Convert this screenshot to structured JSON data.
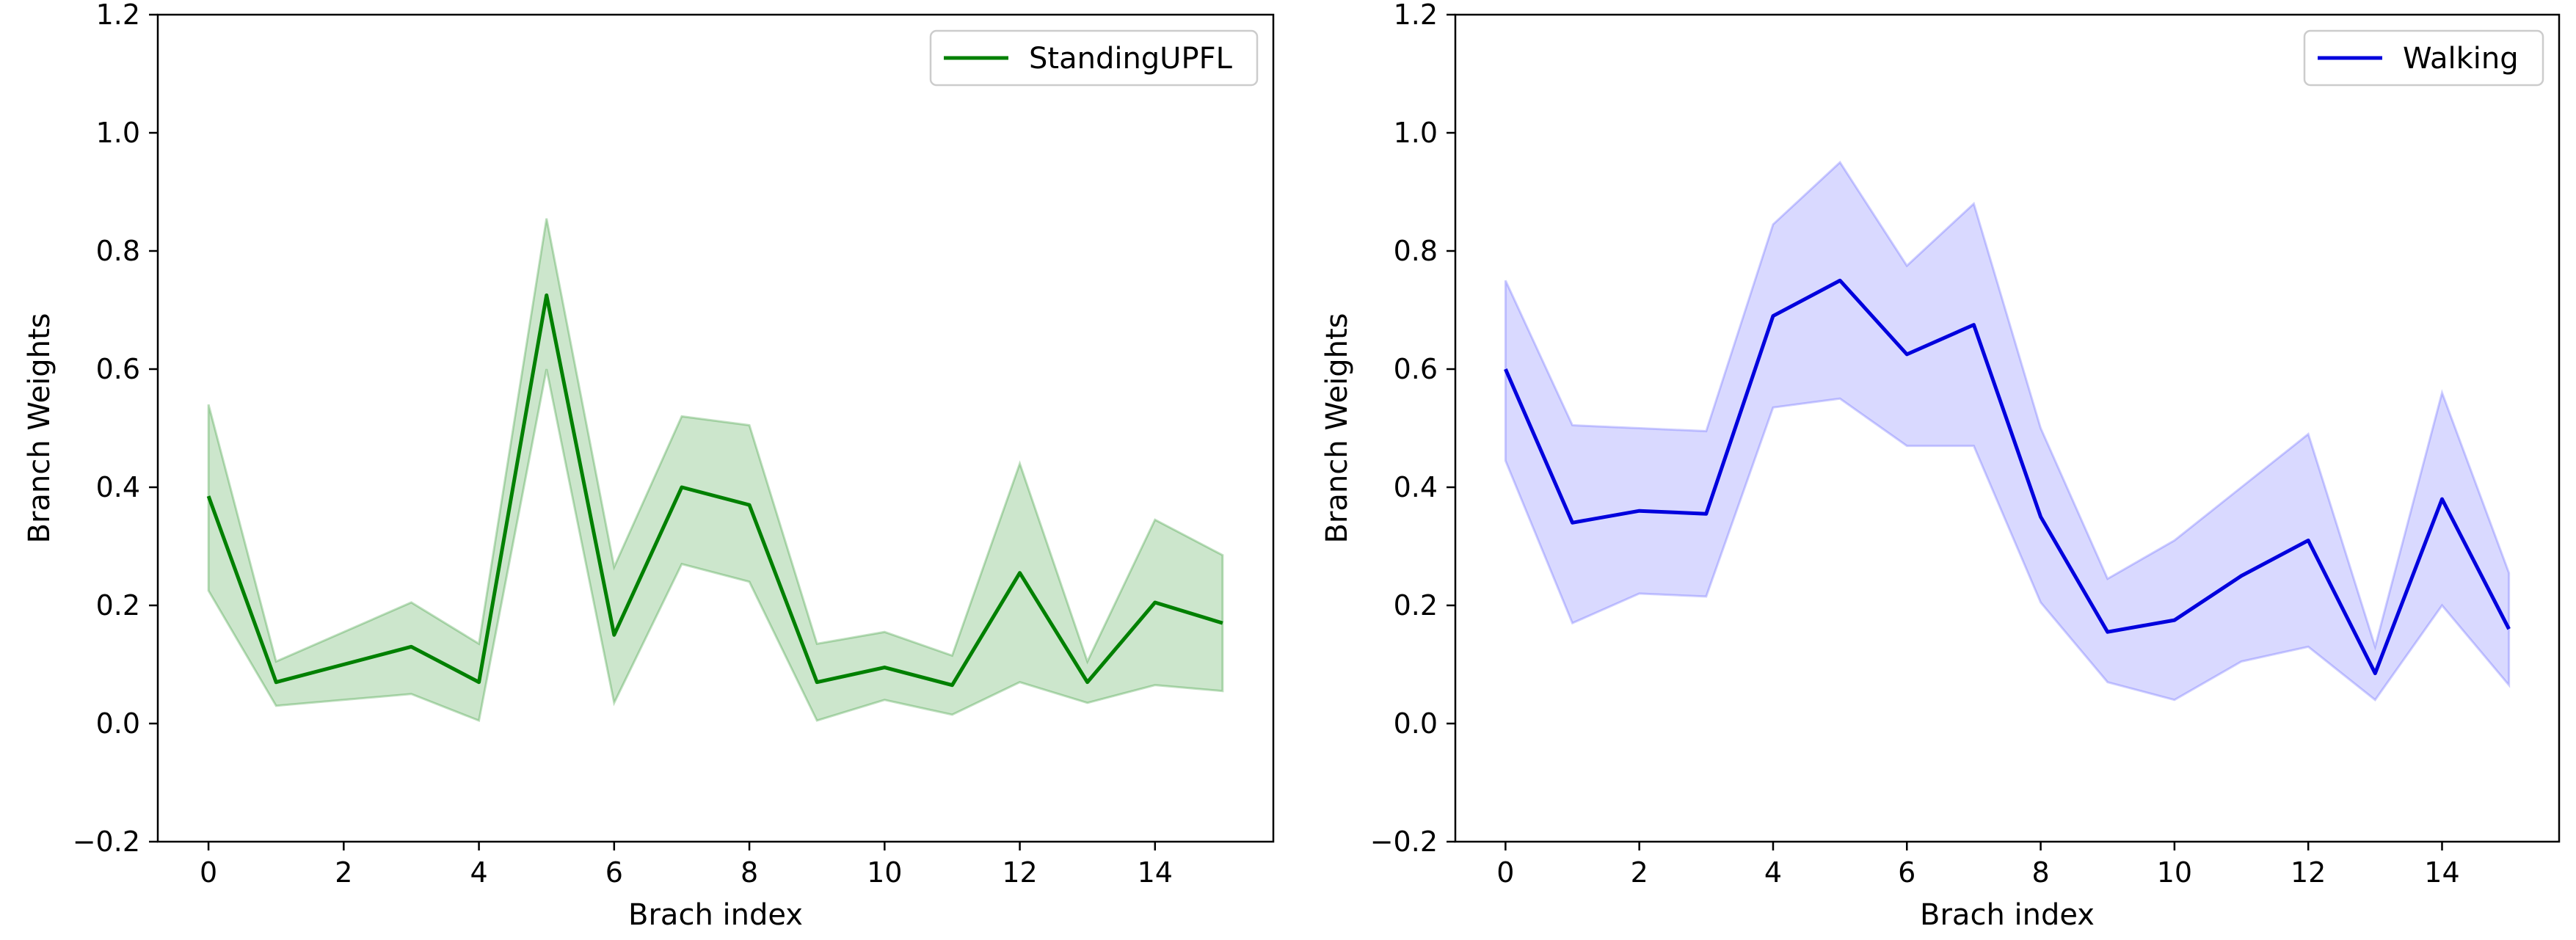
{
  "chart_data": [
    {
      "type": "line",
      "xlabel": "Brach index",
      "ylabel": "Branch Weights",
      "xlim": [
        -0.75,
        15.75
      ],
      "ylim": [
        -0.2,
        1.2
      ],
      "xticks": [
        0,
        2,
        4,
        6,
        8,
        10,
        12,
        14
      ],
      "yticks": [
        -0.2,
        0.0,
        0.2,
        0.4,
        0.6,
        0.8,
        1.0,
        1.2
      ],
      "ytick_labels": [
        "−0.2",
        "0.0",
        "0.2",
        "0.4",
        "0.6",
        "0.8",
        "1.0",
        "1.2"
      ],
      "legend_position": "top-right",
      "grid": false,
      "series": [
        {
          "name": "StandingUPFL",
          "color": "#008000",
          "fill_color": "#008000",
          "x": [
            0,
            1,
            2,
            3,
            4,
            5,
            6,
            7,
            8,
            9,
            10,
            11,
            12,
            13,
            14,
            15
          ],
          "values": [
            0.385,
            0.07,
            0.1,
            0.13,
            0.07,
            0.725,
            0.15,
            0.4,
            0.37,
            0.07,
            0.095,
            0.065,
            0.255,
            0.07,
            0.205,
            0.17
          ],
          "lower": [
            0.225,
            0.03,
            0.04,
            0.05,
            0.005,
            0.6,
            0.035,
            0.27,
            0.24,
            0.005,
            0.04,
            0.015,
            0.07,
            0.035,
            0.065,
            0.055
          ],
          "upper": [
            0.54,
            0.105,
            0.155,
            0.205,
            0.135,
            0.855,
            0.265,
            0.52,
            0.505,
            0.135,
            0.155,
            0.115,
            0.44,
            0.105,
            0.345,
            0.285
          ]
        }
      ]
    },
    {
      "type": "line",
      "xlabel": "Brach index",
      "ylabel": "Branch Weights",
      "xlim": [
        -0.75,
        15.75
      ],
      "ylim": [
        -0.2,
        1.2
      ],
      "xticks": [
        0,
        2,
        4,
        6,
        8,
        10,
        12,
        14
      ],
      "yticks": [
        -0.2,
        0.0,
        0.2,
        0.4,
        0.6,
        0.8,
        1.0,
        1.2
      ],
      "ytick_labels": [
        "−0.2",
        "0.0",
        "0.2",
        "0.4",
        "0.6",
        "0.8",
        "1.0",
        "1.2"
      ],
      "legend_position": "top-right",
      "grid": false,
      "series": [
        {
          "name": "Walking",
          "color": "#0000dd",
          "fill_color": "#4040ff",
          "x": [
            0,
            1,
            2,
            3,
            4,
            5,
            6,
            7,
            8,
            9,
            10,
            11,
            12,
            13,
            14,
            15
          ],
          "values": [
            0.6,
            0.34,
            0.36,
            0.355,
            0.69,
            0.75,
            0.625,
            0.675,
            0.35,
            0.155,
            0.175,
            0.25,
            0.31,
            0.085,
            0.38,
            0.16
          ],
          "lower": [
            0.445,
            0.17,
            0.22,
            0.215,
            0.535,
            0.55,
            0.47,
            0.47,
            0.205,
            0.07,
            0.04,
            0.105,
            0.13,
            0.04,
            0.2,
            0.065
          ],
          "upper": [
            0.75,
            0.505,
            0.5,
            0.495,
            0.845,
            0.95,
            0.775,
            0.88,
            0.5,
            0.245,
            0.31,
            0.4,
            0.49,
            0.13,
            0.56,
            0.255
          ]
        }
      ]
    }
  ]
}
